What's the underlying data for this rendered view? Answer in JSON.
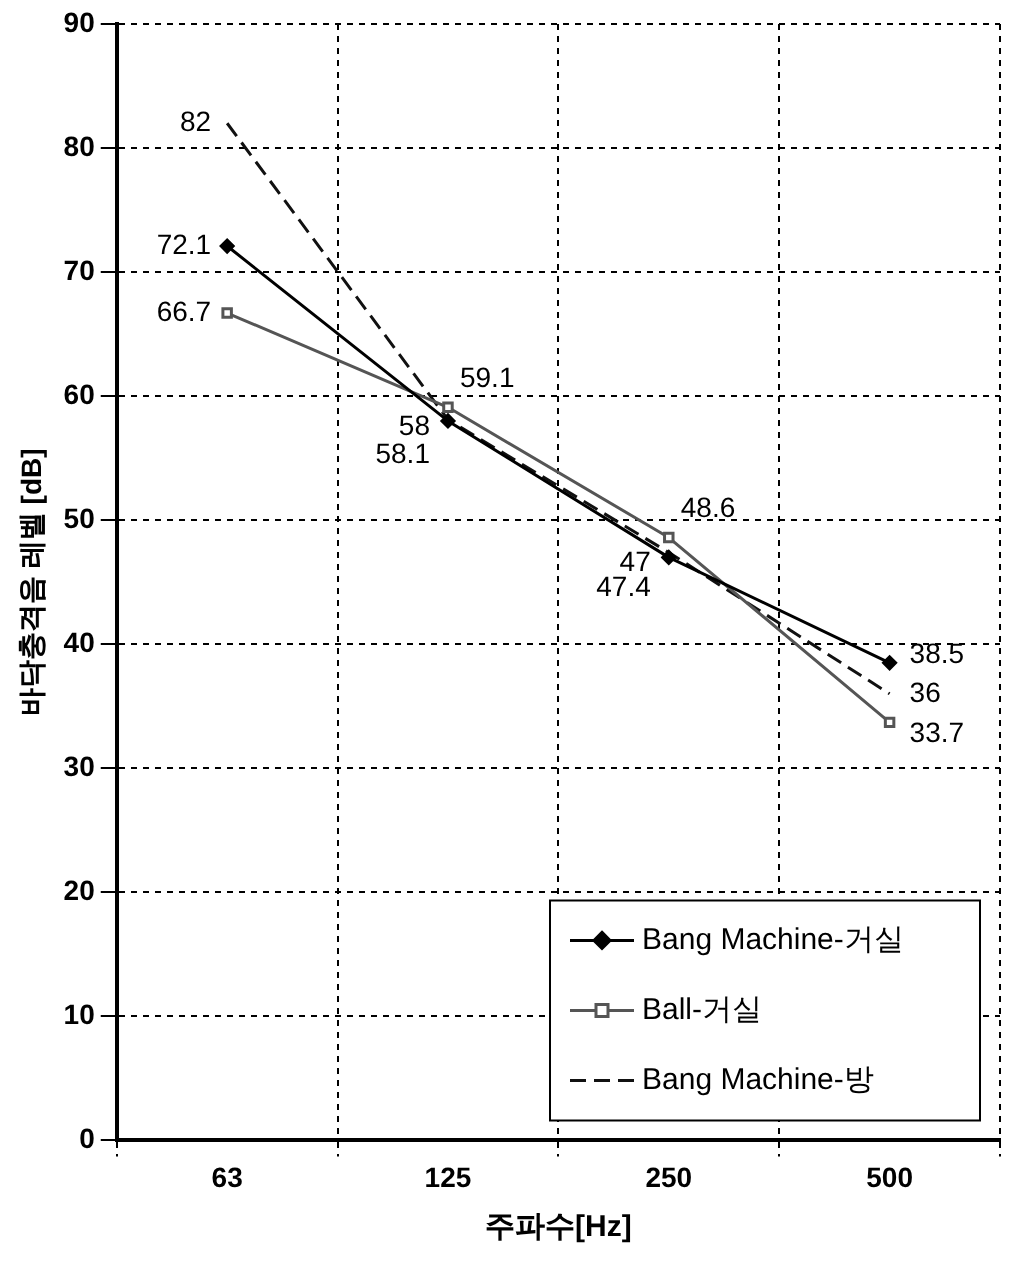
{
  "chart_data": {
    "type": "line",
    "xlabel": "주파수[Hz]",
    "ylabel": "바닥충격음 레벨 [dB]",
    "categories": [
      "63",
      "125",
      "250",
      "500"
    ],
    "series": [
      {
        "name": "Bang Machine-거실",
        "color": "#000000",
        "values": [
          72.1,
          58,
          47,
          38.5
        ],
        "marker": "diamond",
        "line_style": "solid"
      },
      {
        "name": "Ball-거실",
        "color": "#555555",
        "values": [
          66.7,
          59.1,
          48.6,
          33.7
        ],
        "marker": "square",
        "line_style": "solid"
      },
      {
        "name": "Bang Machine-방",
        "color": "#111111",
        "values": [
          82,
          58.1,
          47.4,
          36
        ],
        "marker": "none",
        "line_style": "dashed"
      }
    ],
    "ylim": [
      0,
      90
    ],
    "yticks": [
      0,
      10,
      20,
      30,
      40,
      50,
      60,
      70,
      80,
      90
    ],
    "grid": true,
    "legend": "bottom right",
    "data_labels": true
  }
}
